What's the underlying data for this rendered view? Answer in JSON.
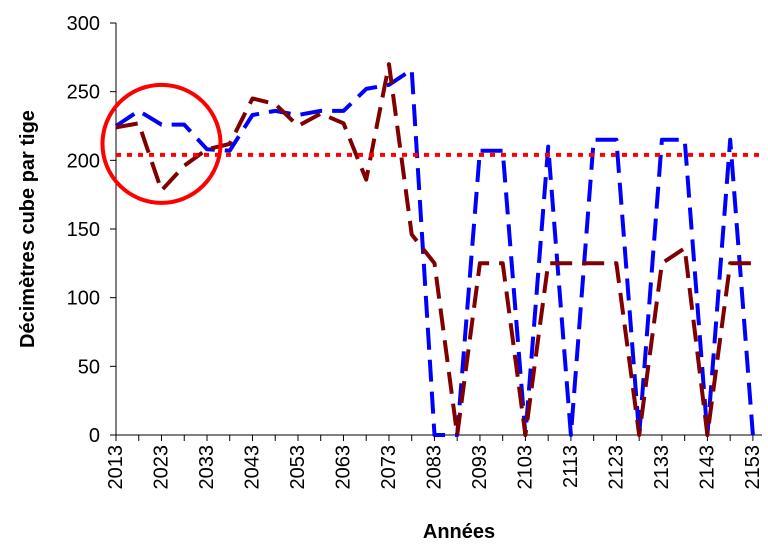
{
  "chart_data": {
    "type": "line",
    "title": "",
    "xlabel": "Années",
    "ylabel": "Décimètres cube par tige",
    "ylim": [
      0,
      300
    ],
    "yticks": [
      0,
      50,
      100,
      150,
      200,
      250,
      300
    ],
    "xlim": [
      2013,
      2155
    ],
    "xticks": [
      "2013",
      "2023",
      "2033",
      "2043",
      "2053",
      "2063",
      "2073",
      "2083",
      "2093",
      "2103",
      "2113",
      "2123",
      "2133",
      "2143",
      "2153"
    ],
    "grid": false,
    "legend": "none",
    "reference_line": {
      "value": 204,
      "color": "#ff0000",
      "style": "dotted"
    },
    "highlight_circle": {
      "x_center": 2023,
      "y_center": 212,
      "color": "#ff0000"
    },
    "series": [
      {
        "color": "#0000ff",
        "style": "dashed",
        "x": [
          2013,
          2018,
          2023,
          2028,
          2033,
          2038,
          2043,
          2048,
          2053,
          2058,
          2063,
          2068,
          2073,
          2078,
          2083,
          2088,
          2093,
          2098,
          2103,
          2108,
          2113,
          2118,
          2123,
          2128,
          2133,
          2138,
          2143,
          2148,
          2153
        ],
        "y": [
          225,
          236,
          226,
          226,
          208,
          207,
          233,
          236,
          233,
          236,
          236,
          252,
          255,
          266,
          0,
          0,
          207,
          207,
          0,
          210,
          0,
          215,
          215,
          0,
          215,
          215,
          0,
          215,
          0
        ]
      },
      {
        "color": "#800000",
        "style": "dashed",
        "x": [
          2013,
          2018,
          2023,
          2028,
          2033,
          2038,
          2043,
          2048,
          2053,
          2058,
          2063,
          2068,
          2073,
          2078,
          2083,
          2088,
          2093,
          2098,
          2103,
          2108,
          2113,
          2118,
          2123,
          2128,
          2133,
          2138,
          2143,
          2148,
          2153
        ],
        "y": [
          224,
          227,
          178,
          196,
          208,
          212,
          245,
          241,
          225,
          234,
          227,
          186,
          270,
          146,
          125,
          0,
          125,
          125,
          0,
          125,
          125,
          125,
          125,
          0,
          125,
          136,
          0,
          125,
          125
        ]
      }
    ]
  }
}
